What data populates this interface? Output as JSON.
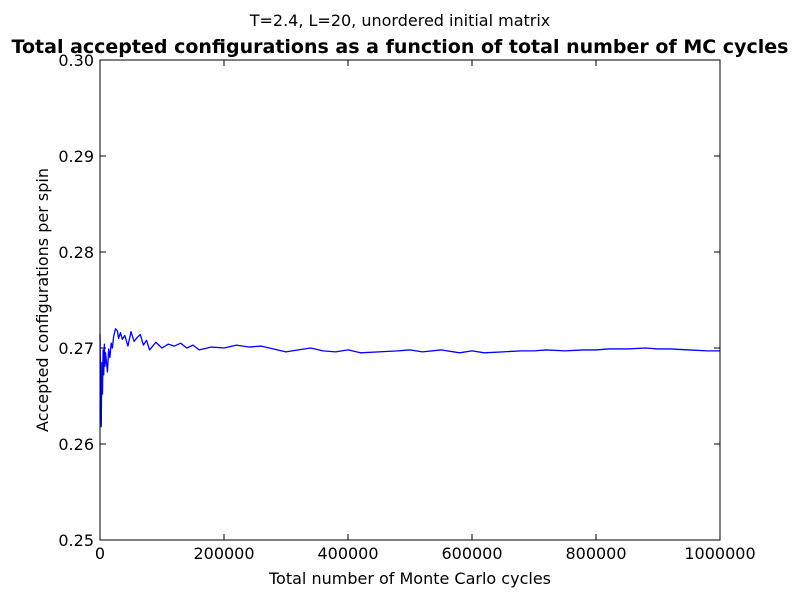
{
  "chart_data": {
    "type": "line",
    "suptitle": "T=2.4, L=20, unordered initial matrix",
    "title": "Total accepted configurations as a function of total number of MC cycles",
    "xlabel": "Total number of Monte Carlo cycles",
    "ylabel": "Accepted configurations per spin",
    "xlim": [
      0,
      1000000
    ],
    "ylim": [
      0.25,
      0.3
    ],
    "xticks": [
      0,
      200000,
      400000,
      600000,
      800000,
      1000000
    ],
    "xtick_labels": [
      "0",
      "200000",
      "400000",
      "600000",
      "800000",
      "1000000"
    ],
    "yticks": [
      0.25,
      0.26,
      0.27,
      0.28,
      0.29,
      0.3
    ],
    "ytick_labels": [
      "0.25",
      "0.26",
      "0.27",
      "0.28",
      "0.29",
      "0.30"
    ],
    "grid": false,
    "colors": {
      "series": "#0000ff"
    },
    "series": [
      {
        "x": [
          0,
          1000,
          2000,
          3000,
          4000,
          5000,
          6000,
          7000,
          8000,
          9000,
          10000,
          12000,
          14000,
          16000,
          18000,
          20000,
          22000,
          25000,
          28000,
          30000,
          33000,
          36000,
          40000,
          45000,
          50000,
          55000,
          60000,
          65000,
          70000,
          75000,
          80000,
          90000,
          100000,
          110000,
          120000,
          130000,
          140000,
          150000,
          160000,
          180000,
          200000,
          220000,
          240000,
          260000,
          280000,
          300000,
          320000,
          340000,
          360000,
          380000,
          400000,
          420000,
          450000,
          480000,
          500000,
          520000,
          550000,
          580000,
          600000,
          620000,
          650000,
          680000,
          700000,
          720000,
          750000,
          780000,
          800000,
          820000,
          850000,
          880000,
          900000,
          920000,
          950000,
          980000,
          1000000
        ],
        "y": [
          0.2715,
          0.2662,
          0.2618,
          0.2685,
          0.2652,
          0.2698,
          0.2672,
          0.2704,
          0.2681,
          0.2695,
          0.2688,
          0.2675,
          0.2699,
          0.269,
          0.2705,
          0.27,
          0.2712,
          0.272,
          0.2718,
          0.271,
          0.2716,
          0.2709,
          0.2713,
          0.2702,
          0.2717,
          0.2707,
          0.2711,
          0.2714,
          0.2703,
          0.2708,
          0.2698,
          0.2706,
          0.27,
          0.2704,
          0.2702,
          0.2705,
          0.27,
          0.2703,
          0.2698,
          0.2701,
          0.27,
          0.2703,
          0.2701,
          0.2702,
          0.2699,
          0.2696,
          0.2698,
          0.27,
          0.2697,
          0.2696,
          0.2698,
          0.2695,
          0.2696,
          0.2697,
          0.2698,
          0.2696,
          0.2698,
          0.2695,
          0.2697,
          0.2695,
          0.2696,
          0.2697,
          0.2697,
          0.2698,
          0.2697,
          0.2698,
          0.2698,
          0.2699,
          0.2699,
          0.27,
          0.2699,
          0.2699,
          0.2698,
          0.2697,
          0.2697
        ]
      }
    ]
  }
}
